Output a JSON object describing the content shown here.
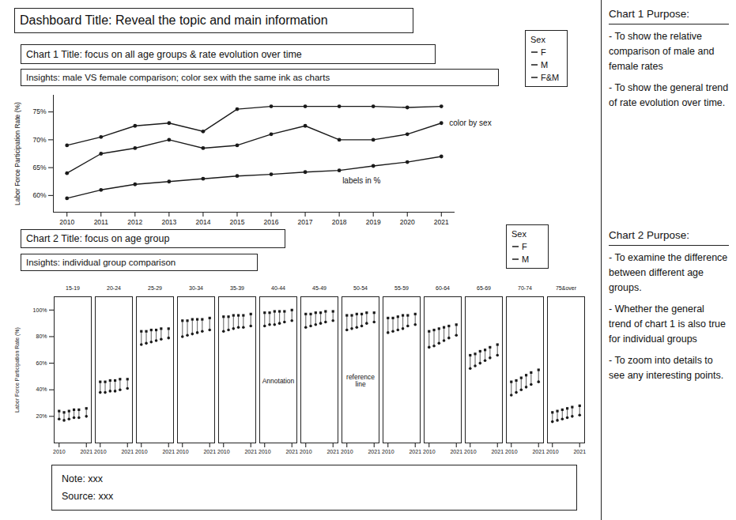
{
  "title": "Dashboard Title: Reveal the topic and main information",
  "chart_data": [
    {
      "type": "line",
      "title": "Chart 1 Title: focus on all age groups & rate evolution over time",
      "subtitle": "Insights: male VS female comparison; color sex with the same ink as charts",
      "legend_title": "Sex",
      "legend": "top right",
      "grid": false,
      "y_label": "Labor Force Participation Rate (%)",
      "x": [
        2010,
        2011,
        2012,
        2013,
        2014,
        2015,
        2016,
        2017,
        2018,
        2019,
        2020,
        2021
      ],
      "xlim": [
        2009.6,
        2021.4
      ],
      "xticks": [
        2010,
        2011,
        2012,
        2013,
        2014,
        2015,
        2016,
        2017,
        2018,
        2019,
        2020,
        2021
      ],
      "ylim": [
        57,
        78
      ],
      "yticks": [
        {
          "value": 60,
          "label": "60%"
        },
        {
          "value": 65,
          "label": "65%"
        },
        {
          "value": 70,
          "label": "70%"
        },
        {
          "value": 75,
          "label": "75%"
        }
      ],
      "series": [
        {
          "name": "F",
          "color": "#1a1a1a",
          "marker": "dot",
          "line_style": "solid",
          "values": [
            59.5,
            61,
            62,
            62.5,
            63,
            63.5,
            63.8,
            64.2,
            64.5,
            65.3,
            66,
            67
          ]
        },
        {
          "name": "M",
          "color": "#1a1a1a",
          "marker": "dot",
          "line_style": "solid",
          "values": [
            69,
            70.5,
            72.5,
            73,
            71.5,
            75.5,
            76,
            76,
            76,
            76,
            75.8,
            76
          ]
        },
        {
          "name": "F&M",
          "color": "#1a1a1a",
          "marker": "dot",
          "line_style": "solid",
          "values": [
            64,
            67.5,
            68.5,
            70,
            68.5,
            69,
            71,
            72.5,
            70,
            70,
            71,
            73
          ]
        }
      ],
      "annotations": [
        {
          "text": "color by sex",
          "series": "F&M",
          "x": 2021
        },
        {
          "text": "labels in %",
          "series": "F",
          "x": 2018
        }
      ]
    },
    {
      "type": "dot",
      "title": "Chart 2 Title: focus on age group",
      "subtitle": "Insights: individual group comparison",
      "legend_title": "Sex",
      "legend": "top right",
      "grid": false,
      "y_label": "Labor Force Participation Rate (%)",
      "facets": [
        "15-19",
        "20-24",
        "25-29",
        "30-34",
        "35-39",
        "40-44",
        "45-49",
        "50-54",
        "55-59",
        "60-64",
        "65-69",
        "70-74",
        "75&over"
      ],
      "x": [
        2010,
        2012,
        2014,
        2016,
        2018,
        2021
      ],
      "xlim": [
        2008,
        2023
      ],
      "xticks": [
        2010,
        2021
      ],
      "ylim": [
        0,
        110
      ],
      "yticks": [
        {
          "value": 20,
          "label": "20%"
        },
        {
          "value": 40,
          "label": "40%"
        },
        {
          "value": 60,
          "label": "60%"
        },
        {
          "value": 80,
          "label": "80%"
        },
        {
          "value": 100,
          "label": "100%"
        }
      ],
      "series": [
        {
          "name": "F",
          "color": "#1a1a1a",
          "marker": "circle",
          "line_style": "solid",
          "values": [
            [
              18,
              17,
              18,
              19,
              19,
              20
            ],
            [
              38,
              38,
              39,
              39,
              40,
              41
            ],
            [
              74,
              75,
              76,
              77,
              78,
              79
            ],
            [
              80,
              81,
              82,
              83,
              84,
              85
            ],
            [
              84,
              85,
              86,
              87,
              87,
              88
            ],
            [
              88,
              89,
              89,
              90,
              91,
              92
            ],
            [
              87,
              88,
              89,
              90,
              91,
              92
            ],
            [
              85,
              86,
              87,
              88,
              90,
              91
            ],
            [
              83,
              84,
              85,
              86,
              88,
              89
            ],
            [
              72,
              73,
              75,
              77,
              79,
              81
            ],
            [
              56,
              58,
              60,
              62,
              64,
              66
            ],
            [
              36,
              38,
              40,
              42,
              44,
              46
            ],
            [
              16,
              17,
              18,
              19,
              20,
              21
            ]
          ]
        },
        {
          "name": "M",
          "color": "#1a1a1a",
          "marker": "square",
          "line_style": "solid",
          "values": [
            [
              24,
              23,
              24,
              25,
              25,
              26
            ],
            [
              46,
              46,
              47,
              47,
              48,
              48
            ],
            [
              84,
              84,
              85,
              85,
              86,
              86
            ],
            [
              92,
              92,
              93,
              93,
              93,
              94
            ],
            [
              95,
              95,
              96,
              96,
              96,
              97
            ],
            [
              98,
              98,
              99,
              99,
              99,
              100
            ],
            [
              97,
              97,
              98,
              98,
              99,
              99
            ],
            [
              96,
              96,
              97,
              97,
              98,
              98
            ],
            [
              94,
              94,
              95,
              96,
              96,
              97
            ],
            [
              84,
              85,
              86,
              87,
              88,
              89
            ],
            [
              66,
              67,
              69,
              70,
              72,
              74
            ],
            [
              46,
              47,
              49,
              51,
              53,
              55
            ],
            [
              23,
              24,
              25,
              26,
              27,
              28
            ]
          ]
        }
      ],
      "annotations": [
        {
          "text": "Annotation",
          "group": "40-44"
        },
        {
          "text": "reference line",
          "group": "50-54"
        }
      ]
    }
  ],
  "sidebar": [
    {
      "heading": "Chart 1 Purpose:",
      "items": [
        "- To show the relative comparison of male and female rates",
        "- To show the general trend of rate evolution over time."
      ]
    },
    {
      "heading": "Chart 2 Purpose:",
      "items": [
        "- To examine the difference between different age groups.",
        "- Whether the general trend of chart 1 is also true for individual groups",
        "- To zoom into details to see any interesting points."
      ]
    }
  ],
  "footer": [
    "Note: xxx",
    "Source: xxx"
  ]
}
